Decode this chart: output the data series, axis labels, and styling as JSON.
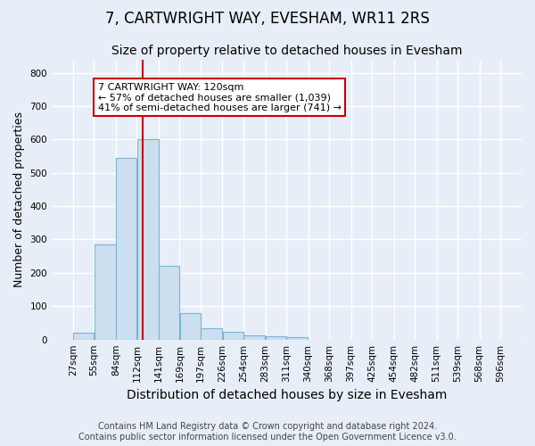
{
  "title": "7, CARTWRIGHT WAY, EVESHAM, WR11 2RS",
  "subtitle": "Size of property relative to detached houses in Evesham",
  "xlabel": "Distribution of detached houses by size in Evesham",
  "ylabel": "Number of detached properties",
  "footer_line1": "Contains HM Land Registry data © Crown copyright and database right 2024.",
  "footer_line2": "Contains public sector information licensed under the Open Government Licence v3.0.",
  "bin_edges": [
    27,
    55,
    84,
    112,
    141,
    169,
    197,
    226,
    254,
    283,
    311,
    340,
    368,
    397,
    425,
    454,
    482,
    511,
    539,
    568,
    596
  ],
  "bar_heights": [
    20,
    285,
    545,
    600,
    220,
    80,
    33,
    22,
    12,
    9,
    7,
    0,
    0,
    0,
    0,
    0,
    0,
    0,
    0,
    0
  ],
  "bar_color": "#ccdff0",
  "bar_edge_color": "#7ab4d4",
  "vline_color": "#cc0000",
  "vline_x": 120,
  "annotation_text": "7 CARTWRIGHT WAY: 120sqm\n← 57% of detached houses are smaller (1,039)\n41% of semi-detached houses are larger (741) →",
  "annotation_box_color": "#cc0000",
  "annotation_bg": "#ffffff",
  "ylim": [
    0,
    840
  ],
  "yticks": [
    0,
    100,
    200,
    300,
    400,
    500,
    600,
    700,
    800
  ],
  "background_color": "#e8eef7",
  "grid_color": "#ffffff",
  "title_fontsize": 12,
  "subtitle_fontsize": 10,
  "axis_label_fontsize": 9,
  "tick_fontsize": 7.5,
  "footer_fontsize": 7
}
